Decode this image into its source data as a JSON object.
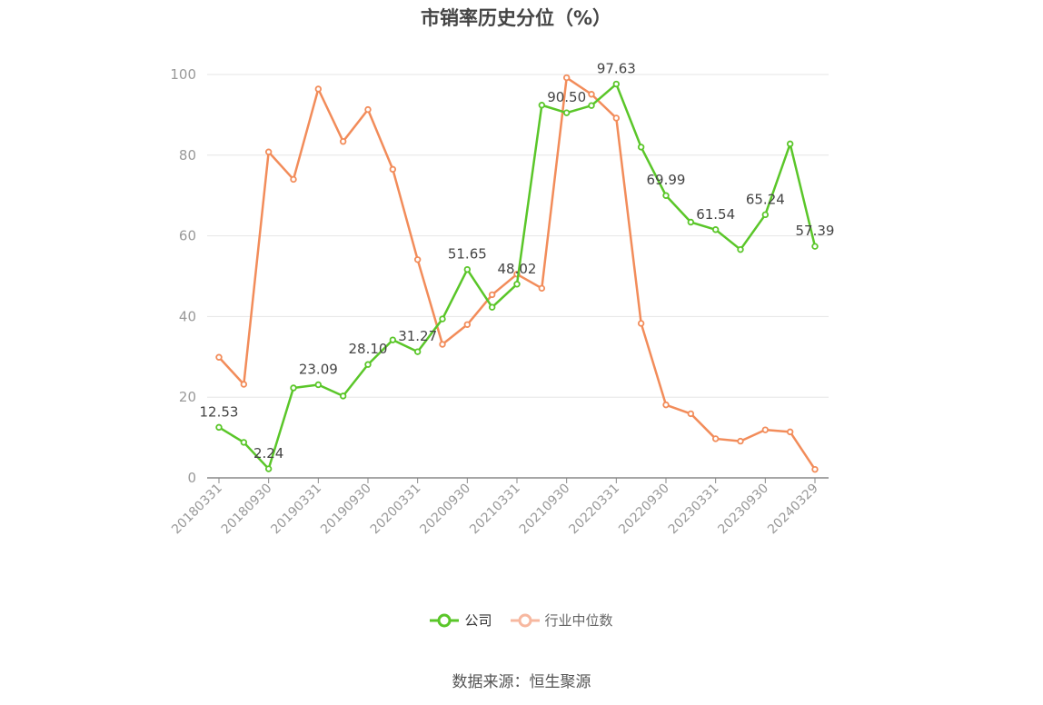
{
  "title": "市销率历史分位（%）",
  "source": "数据来源：恒生聚源",
  "colors": {
    "company": "#5ac629",
    "industry": "#f28c5a",
    "industry_legend": "#f7b8a0",
    "grid": "#e6e6e6",
    "axis": "#888888"
  },
  "legend": [
    {
      "key": "company",
      "label": "公司"
    },
    {
      "key": "industry",
      "label": "行业中位数"
    }
  ],
  "chart_data": {
    "type": "line",
    "ylim": [
      0,
      100
    ],
    "yticks": [
      0,
      20,
      40,
      60,
      80,
      100
    ],
    "grid": true,
    "legend_position": "bottom-center",
    "x_tick_labels": [
      "20180331",
      "20180930",
      "20190331",
      "20190930",
      "20200331",
      "20200930",
      "20210331",
      "20210930",
      "20220331",
      "20220930",
      "20230331",
      "20230930",
      "20240329"
    ],
    "x": [
      "20180331",
      "20180630",
      "20180930",
      "20181231",
      "20190331",
      "20190630",
      "20190930",
      "20191231",
      "20200331",
      "20200630",
      "20200930",
      "20201231",
      "20210331",
      "20210630",
      "20210930",
      "20211231",
      "20220331",
      "20220630",
      "20220930",
      "20221231",
      "20230331",
      "20230630",
      "20230930",
      "20231231",
      "20240329"
    ],
    "series": [
      {
        "name": "公司",
        "values": [
          12.53,
          8.8,
          2.24,
          22.3,
          23.09,
          20.3,
          28.1,
          34.2,
          31.27,
          39.4,
          51.65,
          42.3,
          48.02,
          92.4,
          90.5,
          92.3,
          97.63,
          82.0,
          69.99,
          63.4,
          61.54,
          56.6,
          65.24,
          82.8,
          57.39
        ],
        "labels": [
          "12.53",
          "",
          "2.24",
          "",
          "23.09",
          "",
          "28.10",
          "",
          "31.27",
          "",
          "51.65",
          "",
          "48.02",
          "",
          "90.50",
          "",
          "97.63",
          "",
          "69.99",
          "",
          "61.54",
          "",
          "65.24",
          "",
          "57.39"
        ]
      },
      {
        "name": "行业中位数",
        "values": [
          29.9,
          23.2,
          80.8,
          74.0,
          96.4,
          83.4,
          91.3,
          76.5,
          54.1,
          33.1,
          38.0,
          45.4,
          50.5,
          47.0,
          99.2,
          95.1,
          89.2,
          38.3,
          18.1,
          15.9,
          9.7,
          9.1,
          11.9,
          11.4,
          2.1
        ]
      }
    ]
  }
}
